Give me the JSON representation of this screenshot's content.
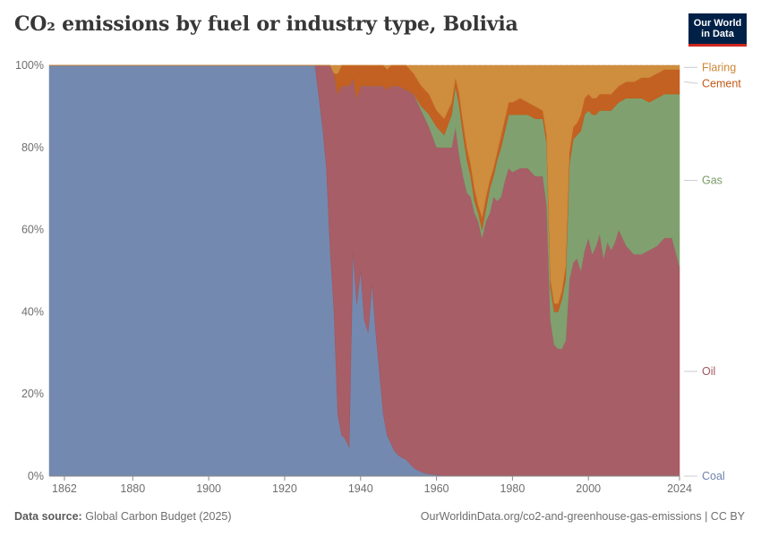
{
  "header": {
    "title": "CO₂ emissions by fuel or industry type, Bolivia",
    "logo_line1": "Our World",
    "logo_line2": "in Data"
  },
  "footer": {
    "source_label": "Data source:",
    "source_value": "Global Carbon Budget (2025)",
    "url": "OurWorldinData.org/co2-and-greenhouse-gas-emissions | CC BY"
  },
  "chart_data": {
    "type": "area",
    "stacked": true,
    "relative": true,
    "title": "CO₂ emissions by fuel or industry type, Bolivia",
    "xlabel": "",
    "ylabel": "",
    "xlim": [
      1858,
      2024
    ],
    "ylim": [
      0,
      100
    ],
    "x_ticks": [
      1862,
      1880,
      1900,
      1920,
      1940,
      1960,
      1980,
      2000,
      2024
    ],
    "y_ticks": [
      0,
      20,
      40,
      60,
      80,
      100
    ],
    "y_tick_labels": [
      "0%",
      "20%",
      "40%",
      "60%",
      "80%",
      "100%"
    ],
    "grid": true,
    "legend_position": "right",
    "x": [
      1858,
      1928,
      1930,
      1931,
      1932,
      1933,
      1934,
      1935,
      1936,
      1937,
      1938,
      1939,
      1940,
      1941,
      1942,
      1943,
      1944,
      1945,
      1946,
      1947,
      1948,
      1949,
      1950,
      1952,
      1954,
      1956,
      1958,
      1960,
      1962,
      1964,
      1965,
      1966,
      1967,
      1968,
      1969,
      1970,
      1971,
      1972,
      1973,
      1974,
      1975,
      1976,
      1977,
      1978,
      1979,
      1980,
      1982,
      1984,
      1986,
      1988,
      1989,
      1990,
      1991,
      1992,
      1993,
      1994,
      1995,
      1996,
      1997,
      1998,
      1999,
      2000,
      2001,
      2002,
      2003,
      2004,
      2005,
      2006,
      2007,
      2008,
      2010,
      2012,
      2014,
      2016,
      2018,
      2020,
      2022,
      2024
    ],
    "series": [
      {
        "name": "Coal",
        "color": "#6d83ab",
        "values": [
          100,
          100,
          85,
          75,
          55,
          40,
          15,
          10,
          9,
          7,
          55,
          42,
          50,
          38,
          35,
          47,
          35,
          25,
          15,
          10,
          8,
          6,
          5,
          4,
          2,
          1,
          0.5,
          0.3,
          0,
          0,
          0,
          0,
          0,
          0,
          0,
          0,
          0,
          0,
          0,
          0,
          0,
          0,
          0,
          0,
          0,
          0,
          0,
          0,
          0,
          0,
          0,
          0,
          0,
          0,
          0,
          0,
          0,
          0,
          0,
          0,
          0,
          0,
          0,
          0,
          0,
          0,
          0,
          0,
          0,
          0,
          0,
          0,
          0,
          0,
          0,
          0,
          0,
          0
        ]
      },
      {
        "name": "Oil",
        "color": "#a2555f",
        "values": [
          0,
          0,
          15,
          25,
          45,
          58,
          78,
          85,
          86,
          88,
          42,
          50,
          45,
          57,
          60,
          48,
          60,
          70,
          80,
          84,
          87,
          89,
          90,
          90,
          91,
          88,
          85,
          80,
          80,
          80,
          85,
          78,
          73,
          69,
          68,
          64,
          62,
          58,
          62,
          64,
          68,
          67,
          68,
          72,
          75,
          74,
          75,
          75,
          73,
          73,
          66,
          38,
          32,
          31,
          31,
          33,
          48,
          52,
          53,
          50,
          55,
          58,
          54,
          56,
          59,
          53,
          57,
          55,
          57,
          60,
          56,
          54,
          54,
          55,
          56,
          58,
          58,
          51
        ]
      },
      {
        "name": "Gas",
        "color": "#799c67",
        "values": [
          0,
          0,
          0,
          0,
          0,
          0,
          0,
          0,
          0,
          0,
          0,
          0,
          0,
          0,
          0,
          0,
          0,
          0,
          0,
          0,
          0,
          0,
          0,
          0,
          0,
          1,
          3,
          5,
          3,
          8,
          10,
          12,
          10,
          8,
          5,
          3,
          2,
          2,
          3,
          6,
          5,
          10,
          12,
          12,
          13,
          14,
          13,
          13,
          14,
          14,
          15,
          8,
          8,
          9,
          12,
          15,
          28,
          30,
          30,
          34,
          33,
          31,
          34,
          32,
          30,
          36,
          32,
          34,
          33,
          31,
          36,
          38,
          38,
          36,
          36,
          35,
          35,
          42
        ]
      },
      {
        "name": "Cement",
        "color": "#c05917",
        "values": [
          0,
          0,
          0,
          0,
          0,
          0,
          5,
          5,
          5,
          5,
          3,
          8,
          5,
          5,
          5,
          5,
          5,
          5,
          5,
          5,
          5,
          5,
          5,
          6,
          5,
          5,
          5,
          4,
          4,
          3,
          2,
          3,
          3,
          3,
          3,
          3,
          2,
          3,
          3,
          2,
          2,
          2,
          3,
          3,
          3,
          3,
          4,
          3,
          3,
          2,
          2,
          2,
          2,
          2,
          2,
          3,
          3,
          3,
          3,
          4,
          4,
          4,
          4,
          4,
          4,
          4,
          4,
          4,
          4,
          4,
          4,
          4,
          5,
          6,
          6,
          6,
          6,
          6
        ]
      },
      {
        "name": "Flaring",
        "color": "#cc8734",
        "values": [
          0,
          0,
          0,
          0,
          0,
          2,
          2,
          0,
          0,
          0,
          0,
          0,
          0,
          0,
          0,
          0,
          0,
          0,
          0,
          1,
          0,
          0,
          0,
          0,
          2,
          5,
          7,
          11,
          13,
          9,
          3,
          7,
          14,
          20,
          24,
          30,
          34,
          37,
          32,
          28,
          25,
          21,
          17,
          13,
          9,
          9,
          8,
          9,
          10,
          11,
          17,
          52,
          58,
          58,
          55,
          49,
          21,
          15,
          14,
          12,
          8,
          7,
          8,
          8,
          7,
          7,
          7,
          7,
          6,
          5,
          4,
          4,
          3,
          3,
          2,
          1,
          1,
          1
        ]
      }
    ]
  }
}
